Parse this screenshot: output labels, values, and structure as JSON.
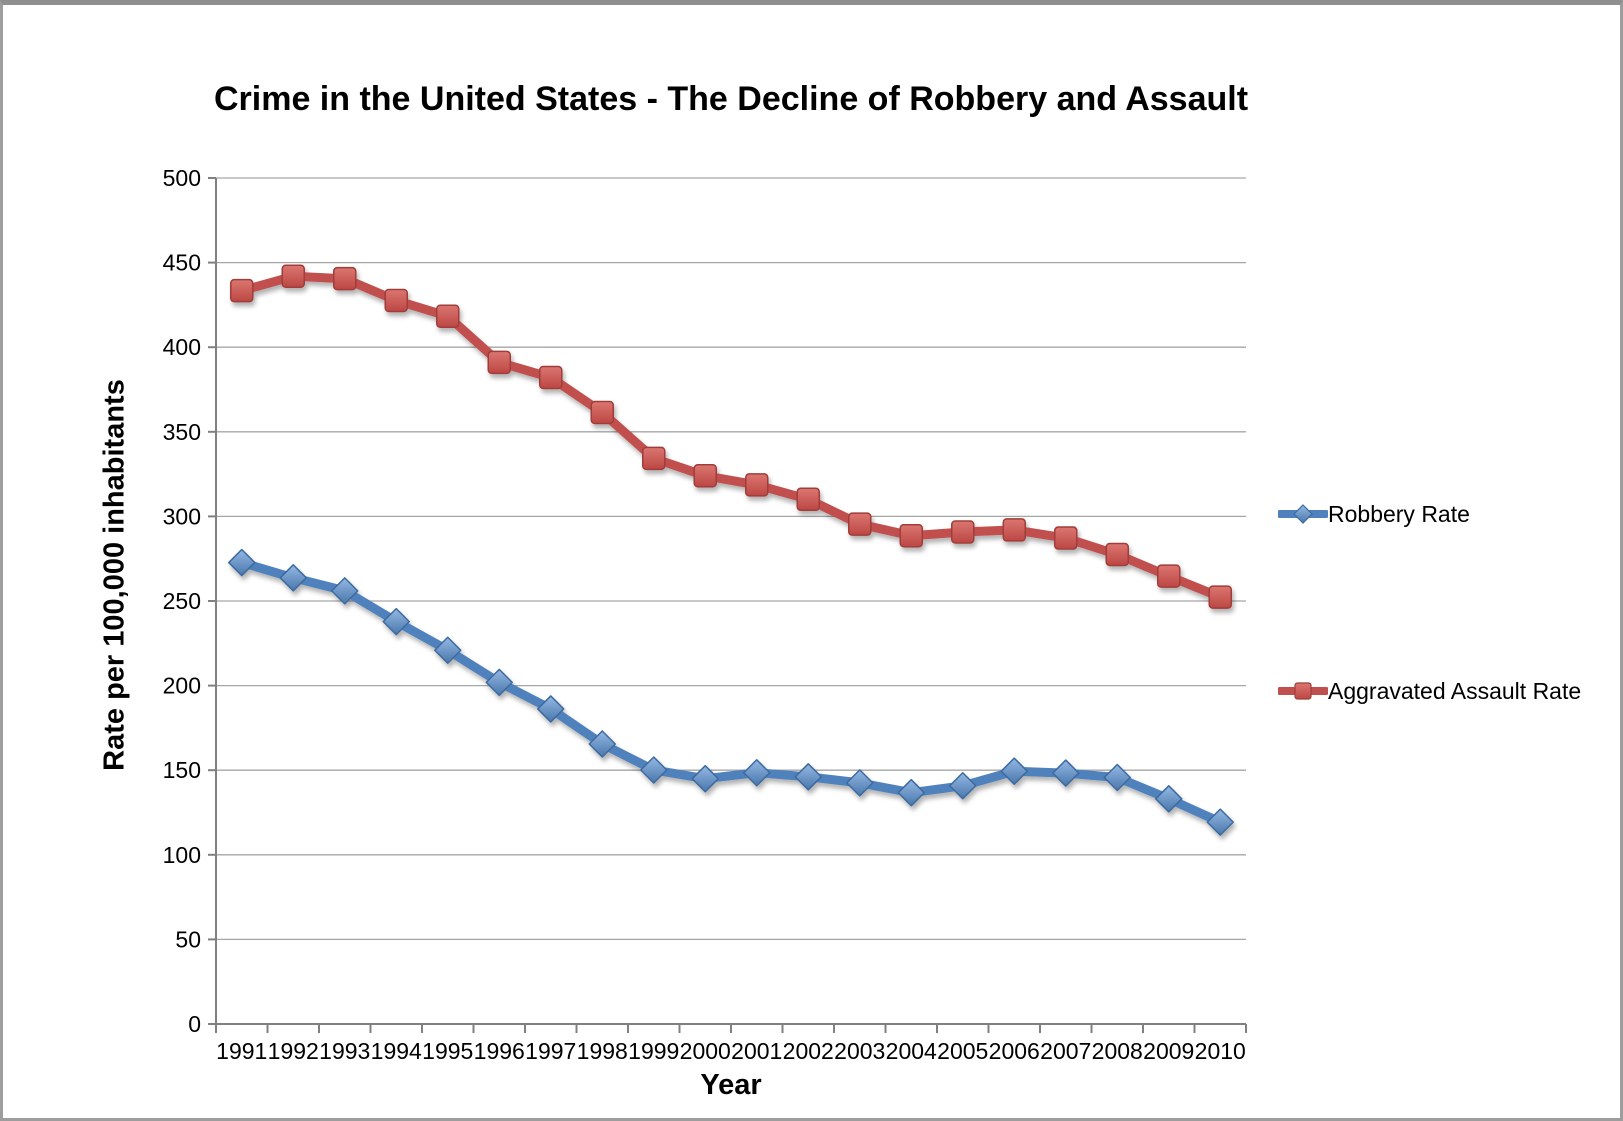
{
  "chart_data": {
    "type": "line",
    "title": "Crime in the United States - The Decline of Robbery and Assault",
    "xlabel": "Year",
    "ylabel": "Rate per 100,000 inhabitants",
    "categories": [
      "1991",
      "1992",
      "1993",
      "1994",
      "1995",
      "1996",
      "1997",
      "1998",
      "1999",
      "2000",
      "2001",
      "2002",
      "2003",
      "2004",
      "2005",
      "2006",
      "2007",
      "2008",
      "2009",
      "2010"
    ],
    "series": [
      {
        "name": "Robbery Rate",
        "marker": "diamond",
        "color": "#4F81BD",
        "marker_light": "#94B9E4",
        "marker_dark": "#4A77AC",
        "marker_stroke": "#3E6A9E",
        "values": [
          272.7,
          263.7,
          256.0,
          237.8,
          220.9,
          201.9,
          186.2,
          165.5,
          150.1,
          145.0,
          148.5,
          146.1,
          142.5,
          136.7,
          140.8,
          149.4,
          148.3,
          145.7,
          133.1,
          119.3
        ]
      },
      {
        "name": "Aggravated Assault Rate",
        "marker": "square",
        "color": "#C0504D",
        "marker_light": "#DB7670",
        "marker_dark": "#BC4744",
        "marker_stroke": "#A03E3B",
        "values": [
          433.4,
          441.9,
          440.5,
          427.6,
          418.3,
          391.0,
          382.1,
          361.4,
          334.3,
          324.0,
          318.6,
          310.1,
          295.4,
          288.6,
          290.8,
          292.0,
          287.2,
          277.5,
          264.7,
          252.3
        ]
      }
    ],
    "ylim": [
      0,
      500
    ],
    "ytick_step": 50,
    "grid": true,
    "grid_color": "#A6A6A6",
    "axis_color": "#808080",
    "tick_label_color": "#000000",
    "legend_position": "right"
  }
}
